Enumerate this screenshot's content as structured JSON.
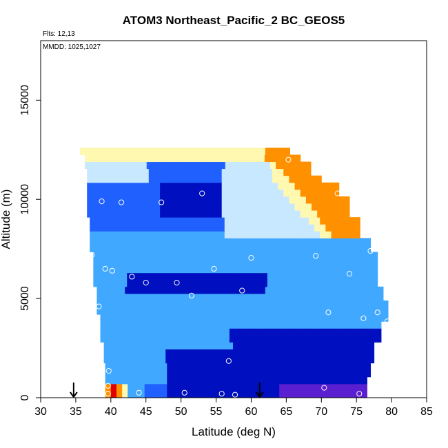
{
  "chart_data": {
    "type": "heatmap",
    "title": "ATOM3 Northeast_Pacific_2 BC_GEOS5",
    "annotations": [
      "Flts: 12,13",
      "MMDD: 1025,1027"
    ],
    "xlabel": "Latitude (deg N)",
    "ylabel": "Altitude (m)",
    "xlim": [
      30,
      85
    ],
    "ylim": [
      0,
      18000
    ],
    "x_ticks": [
      "30",
      "35",
      "40",
      "45",
      "50",
      "55",
      "60",
      "65",
      "70",
      "75",
      "80",
      "85"
    ],
    "y_ticks": [
      "0",
      "5000",
      "10000",
      "15000"
    ],
    "arrow_markers_latitude": [
      34.7,
      61.2
    ],
    "colors": {
      "deep_purple": "#5a1fd0",
      "dark_blue": "#0010c0",
      "blue": "#2060ff",
      "light_blue": "#40a8ff",
      "pale_blue": "#c8e8ff",
      "pale_yellow": "#fff8b0",
      "orange": "#ff9000",
      "red": "#e00000"
    },
    "flight_points": [
      {
        "lat": 65.3,
        "alt": 12000
      },
      {
        "lat": 72.3,
        "alt": 10300
      },
      {
        "lat": 38.7,
        "alt": 9900
      },
      {
        "lat": 41.5,
        "alt": 9850
      },
      {
        "lat": 47.2,
        "alt": 9850
      },
      {
        "lat": 53.0,
        "alt": 10300
      },
      {
        "lat": 37.3,
        "alt": 7200
      },
      {
        "lat": 60.0,
        "alt": 7050
      },
      {
        "lat": 69.2,
        "alt": 7150
      },
      {
        "lat": 77.0,
        "alt": 7400
      },
      {
        "lat": 39.2,
        "alt": 6500
      },
      {
        "lat": 40.2,
        "alt": 6400
      },
      {
        "lat": 43.0,
        "alt": 6100
      },
      {
        "lat": 45.0,
        "alt": 5800
      },
      {
        "lat": 49.4,
        "alt": 5800
      },
      {
        "lat": 54.7,
        "alt": 6500
      },
      {
        "lat": 74.0,
        "alt": 6250
      },
      {
        "lat": 51.5,
        "alt": 5150
      },
      {
        "lat": 58.7,
        "alt": 5400
      },
      {
        "lat": 38.3,
        "alt": 4600
      },
      {
        "lat": 71.0,
        "alt": 4300
      },
      {
        "lat": 78.0,
        "alt": 4300
      },
      {
        "lat": 76.0,
        "alt": 4000
      },
      {
        "lat": 79.4,
        "alt": 3850
      },
      {
        "lat": 56.8,
        "alt": 1850
      },
      {
        "lat": 39.7,
        "alt": 1350
      },
      {
        "lat": 39.6,
        "alt": 600
      },
      {
        "lat": 70.4,
        "alt": 500
      },
      {
        "lat": 39.6,
        "alt": 200
      },
      {
        "lat": 44.0,
        "alt": 250
      },
      {
        "lat": 50.5,
        "alt": 250
      },
      {
        "lat": 55.8,
        "alt": 200
      },
      {
        "lat": 57.7,
        "alt": 150
      },
      {
        "lat": 75.4,
        "alt": 200
      }
    ]
  }
}
